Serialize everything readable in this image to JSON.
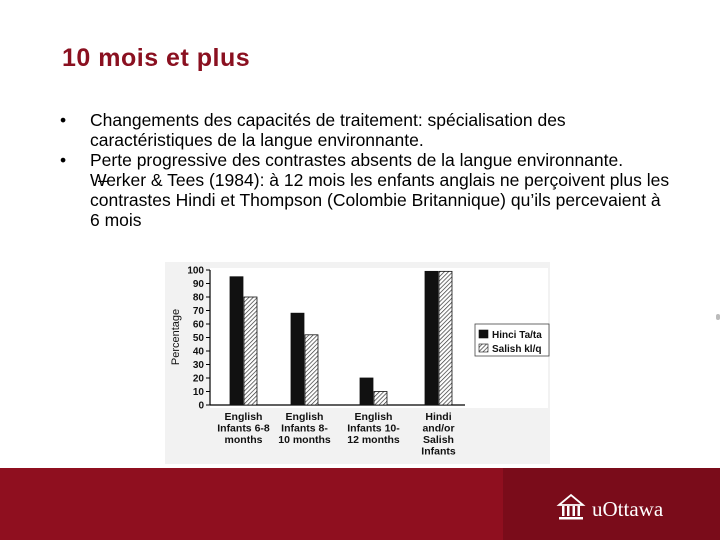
{
  "slide": {
    "title": "10 mois et plus",
    "bullet_symbol": "•",
    "dash_symbol": "–",
    "bullets": [
      {
        "text": "Changements des capacités de traitement: spécialisation des caractéristiques de la langue environnante."
      },
      {
        "text": "Perte progressive des contrastes absents de la langue environnante."
      }
    ],
    "sub_bullet": "Werker & Tees (1984): à 12 mois les enfants anglais ne perçoivent plus les contrastes Hindi et Thompson (Colombie Britannique) qu’ils percevaient à 6 mois"
  },
  "chart_data": {
    "type": "bar",
    "ylabel": "Percentage",
    "ylim": [
      0,
      100
    ],
    "yticks": [
      0,
      10,
      20,
      30,
      40,
      50,
      60,
      70,
      80,
      90,
      100
    ],
    "categories": [
      [
        "English",
        "Infants 6-8",
        "months"
      ],
      [
        "English",
        "Infants 8-",
        "10 months"
      ],
      [
        "English",
        "Infants 10-",
        "12 months"
      ],
      [
        "Hindi",
        "and/or",
        "Salish",
        "Infants"
      ]
    ],
    "series": [
      {
        "name": "Hinci Ta/ta",
        "color": "#111111",
        "pattern": "solid",
        "values": [
          95,
          68,
          20,
          99
        ]
      },
      {
        "name": "Salish kl/q",
        "color": "#ffffff",
        "pattern": "hatch",
        "values": [
          80,
          52,
          10,
          99
        ]
      }
    ],
    "legend_position": "right"
  },
  "footer": {
    "logo_text": "uOttawa",
    "logo_icon": "university-building-icon",
    "colors": {
      "band": "#8f0f1f",
      "band_right": "#7a0c1a"
    }
  }
}
